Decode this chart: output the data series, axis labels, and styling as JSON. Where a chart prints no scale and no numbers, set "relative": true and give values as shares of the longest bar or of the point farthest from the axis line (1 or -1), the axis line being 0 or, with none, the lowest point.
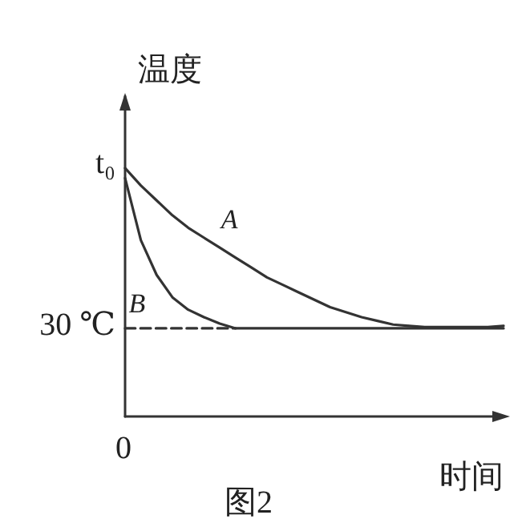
{
  "chart_data": {
    "type": "line",
    "relative": true,
    "title": "图2",
    "xlabel": "时间",
    "ylabel": "温度",
    "categories": [
      null,
      null,
      null,
      null,
      null,
      null,
      null,
      null,
      null,
      null,
      null,
      null,
      null,
      null,
      null,
      null,
      null,
      null,
      null,
      null,
      null,
      null,
      null,
      null,
      null
    ],
    "series": [
      {
        "name": "A",
        "color": "#333333",
        "values": [
          1,
          0.93,
          0.87,
          0.81,
          0.76,
          0.72,
          0.68,
          0.64,
          0.6,
          0.56,
          0.53,
          0.5,
          0.47,
          0.44,
          0.42,
          0.4,
          0.385,
          0.37,
          0.365,
          0.36,
          0.36,
          0.36,
          0.36,
          0.36,
          0.365
        ]
      },
      {
        "name": "B",
        "color": "#333333",
        "values": [
          0.96,
          0.71,
          0.57,
          0.48,
          0.43,
          0.4,
          0.374,
          0.355,
          0.355,
          0.355,
          0.355,
          0.355,
          0.355,
          0.355,
          0.355,
          0.355,
          0.355,
          0.355,
          0.355,
          0.355,
          0.355,
          0.355,
          0.355,
          0.355,
          0.355
        ]
      },
      {
        "color": "#333333",
        "line_style": "dashed",
        "values": [
          0.355,
          0.355,
          0.355,
          0.355,
          0.355,
          0.355,
          0.355,
          0.355,
          null,
          null,
          null,
          null,
          null,
          null,
          null,
          null,
          null,
          null,
          null,
          null,
          null,
          null,
          null,
          null,
          null
        ]
      }
    ],
    "annotations": [
      "t₀",
      "30 ℃",
      "0"
    ],
    "marker": "none",
    "grid": false,
    "legend": false
  }
}
